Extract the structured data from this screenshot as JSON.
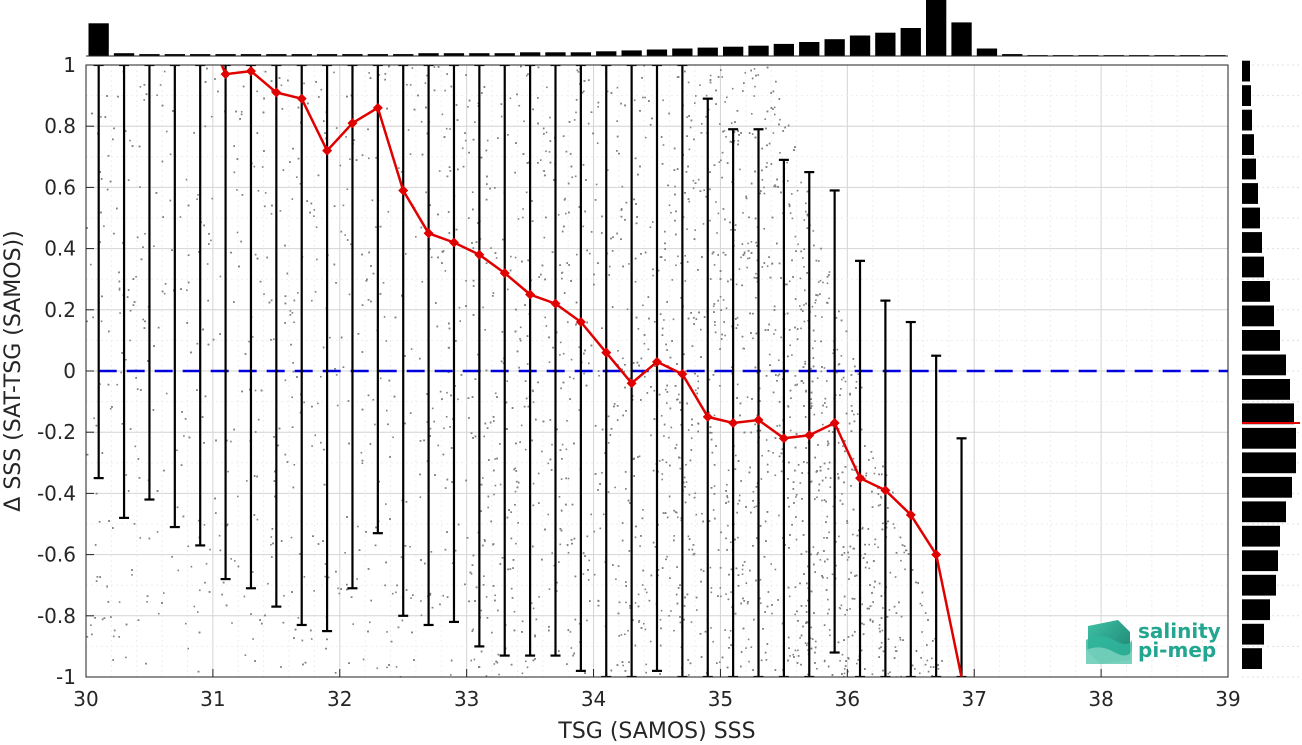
{
  "chart_data": {
    "type": "scatter",
    "xlabel": "TSG (SAMOS) SSS",
    "ylabel": "Δ SSS (SAT-TSG (SAMOS))",
    "xlim": [
      30,
      39
    ],
    "ylim": [
      -1,
      1
    ],
    "x_ticks": [
      "30",
      "31",
      "32",
      "33",
      "34",
      "35",
      "36",
      "37",
      "38",
      "39"
    ],
    "y_ticks": [
      "1",
      "0.8",
      "0.6",
      "0.4",
      "0.2",
      "0",
      "-0.2",
      "-0.4",
      "-0.6",
      "-0.8",
      "-1"
    ],
    "grid": true,
    "reference_line": {
      "y": 0,
      "style": "dashed",
      "color": "#0000dd"
    },
    "bin_stats": {
      "x": [
        30.1,
        30.3,
        30.5,
        30.7,
        30.9,
        31.1,
        31.3,
        31.5,
        31.7,
        31.9,
        32.1,
        32.3,
        32.5,
        32.7,
        32.9,
        33.1,
        33.3,
        33.5,
        33.7,
        33.9,
        34.1,
        34.3,
        34.5,
        34.7,
        34.9,
        35.1,
        35.3,
        35.5,
        35.7,
        35.9,
        36.1,
        36.3,
        36.5,
        36.7,
        36.9
      ],
      "mean": [
        null,
        null,
        null,
        null,
        null,
        0.97,
        0.98,
        0.91,
        0.89,
        0.72,
        0.81,
        0.86,
        0.59,
        0.45,
        0.42,
        0.38,
        0.32,
        0.25,
        0.22,
        0.16,
        0.06,
        -0.04,
        0.03,
        -0.01,
        -0.15,
        -0.17,
        -0.16,
        -0.22,
        -0.21,
        -0.17,
        -0.35,
        -0.39,
        -0.47,
        -0.6,
        -1.0
      ],
      "upper": [
        1,
        1,
        1,
        1,
        1,
        1,
        1,
        1,
        1,
        1,
        1,
        1,
        1,
        1,
        1,
        1,
        1,
        1,
        1,
        1,
        1,
        1,
        1,
        1,
        0.89,
        0.79,
        0.79,
        0.69,
        0.65,
        0.59,
        0.36,
        0.23,
        0.16,
        0.05,
        -0.22
      ],
      "lower": [
        -0.35,
        -0.48,
        -0.42,
        -0.51,
        -0.57,
        -0.68,
        -0.71,
        -0.77,
        -0.83,
        -0.85,
        -0.71,
        -0.53,
        -0.8,
        -0.83,
        -0.82,
        -0.9,
        -0.93,
        -0.93,
        -0.93,
        -0.98,
        -1,
        -1,
        -0.98,
        -1,
        -1,
        -1,
        -1,
        -1,
        -1,
        -0.92,
        -1,
        -1,
        -1,
        -1,
        -1
      ],
      "mean_color": "#e00000",
      "errorbar_color": "#000000"
    },
    "top_histogram": {
      "bin_centers": [
        30.1,
        30.3,
        30.5,
        30.7,
        30.9,
        31.1,
        31.3,
        31.5,
        31.7,
        31.9,
        32.1,
        32.3,
        32.5,
        32.7,
        32.9,
        33.1,
        33.3,
        33.5,
        33.7,
        33.9,
        34.1,
        34.3,
        34.5,
        34.7,
        34.9,
        35.1,
        35.3,
        35.5,
        35.7,
        35.9,
        36.1,
        36.3,
        36.5,
        36.7,
        36.9,
        37.1,
        37.3,
        37.5,
        37.7,
        37.9,
        38.1,
        38.3,
        38.5,
        38.7,
        38.9
      ],
      "counts": [
        35,
        3,
        2,
        2,
        2,
        2,
        2,
        2,
        2,
        2,
        2,
        2,
        2,
        3,
        3,
        3,
        3,
        4,
        4,
        4,
        5,
        6,
        7,
        8,
        9,
        10,
        11,
        13,
        15,
        18,
        22,
        25,
        30,
        60,
        36,
        8,
        2,
        1,
        1,
        1,
        1,
        1,
        1,
        1,
        1
      ]
    },
    "right_histogram": {
      "bin_centers": [
        0.98,
        0.9,
        0.82,
        0.74,
        0.66,
        0.58,
        0.5,
        0.42,
        0.34,
        0.26,
        0.18,
        0.1,
        0.02,
        -0.06,
        -0.14,
        -0.22,
        -0.3,
        -0.38,
        -0.46,
        -0.54,
        -0.62,
        -0.7,
        -0.78,
        -0.86,
        -0.94
      ],
      "counts": [
        8,
        9,
        10,
        12,
        14,
        16,
        18,
        20,
        22,
        28,
        32,
        38,
        44,
        48,
        52,
        54,
        54,
        50,
        44,
        38,
        36,
        34,
        28,
        22,
        20
      ],
      "median_line": -0.17,
      "median_color": "#e00000"
    },
    "scatter_color": "#808080"
  },
  "logo": {
    "line1": "salinity",
    "line2": "pi-mep",
    "color": "#23a68f"
  }
}
